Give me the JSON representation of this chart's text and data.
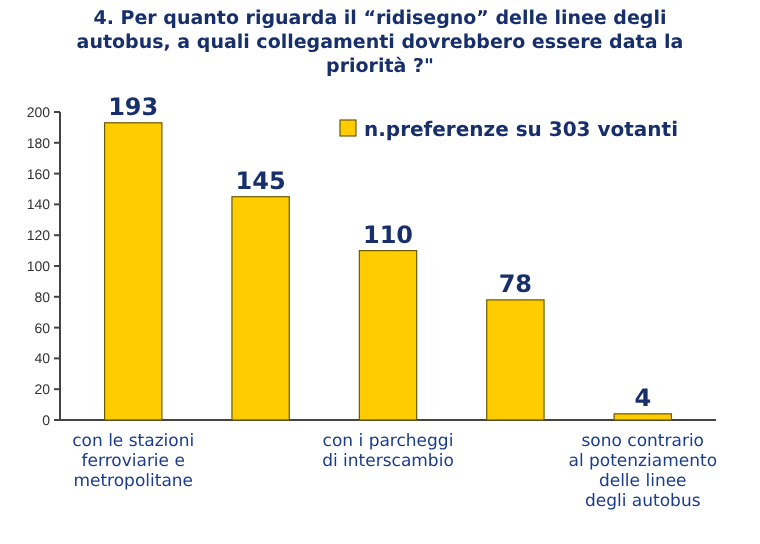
{
  "chart_data": {
    "type": "bar",
    "title": "4. Per quanto riguarda il “ridisegno” delle linee degli autobus, a quali collegamenti dovrebbero essere data la priorità ?\"",
    "categories": [
      "con le stazioni ferroviarie e metropolitane",
      null,
      "con i parcheggi di interscambio",
      null,
      "sono contrario al potenziamento delle linee degli autobus"
    ],
    "series": [
      {
        "name": "n.preferenze su 303 votanti",
        "color": "#ffcc00",
        "values": [
          193,
          145,
          110,
          78,
          4
        ]
      }
    ],
    "ylim": [
      0,
      200
    ],
    "yticks": [
      0,
      20,
      40,
      60,
      80,
      100,
      120,
      140,
      160,
      180,
      200
    ],
    "data_labels": true,
    "legend": "top right",
    "grid": false
  }
}
